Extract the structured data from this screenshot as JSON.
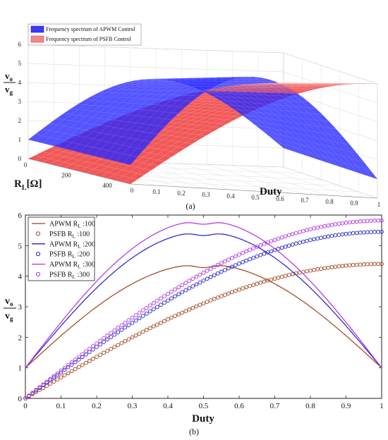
{
  "chart_data": [
    {
      "type": "surface3d",
      "panel_caption": "(a)",
      "legend": [
        {
          "name": "Frequency spectrum of APWM Control",
          "color": "#1f1fff"
        },
        {
          "name": "Frequency spectrum of PSFB Control",
          "color": "#f06a6a"
        }
      ],
      "xlabel": "Duty",
      "ylabel_main": "R",
      "ylabel_sub": "L",
      "ylabel_unit": "[Ω]",
      "zlabel_num": "v",
      "zlabel_num_sub": "o",
      "zlabel_den": "v",
      "zlabel_den_sub": "g",
      "x_ticks": [
        "0",
        "0.1",
        "0.2",
        "0.3",
        "0.4",
        "0.5",
        "0.6",
        "0.7",
        "0.8",
        "0.9",
        "1"
      ],
      "y_ticks": [
        "0",
        "200",
        "400"
      ],
      "z_ticks": [
        "0",
        "1",
        "2",
        "3",
        "4",
        "5",
        "6"
      ],
      "xlim": [
        0,
        1
      ],
      "ylim": [
        0,
        500
      ],
      "zlim": [
        0,
        6
      ],
      "grid": true,
      "legend_position": "top-left"
    },
    {
      "type": "line",
      "panel_caption": "(b)",
      "xlabel": "Duty",
      "ylabel_num": "v",
      "ylabel_num_sub": "o",
      "ylabel_den": "v",
      "ylabel_den_sub": "g",
      "xlim": [
        0,
        1
      ],
      "ylim": [
        0,
        6
      ],
      "x_ticks": [
        "0",
        "0.1",
        "0.2",
        "0.3",
        "0.4",
        "0.5",
        "0.6",
        "0.7",
        "0.8",
        "0.9",
        "1"
      ],
      "y_ticks": [
        "0",
        "1",
        "2",
        "3",
        "4",
        "5",
        "6"
      ],
      "grid": false,
      "legend_position": "top-left",
      "series": [
        {
          "name": "APWM R",
          "sub": "L",
          "suffix": " :100",
          "style": "line",
          "color": "#a0401a",
          "peak": 4.4,
          "R": 100
        },
        {
          "name": "PSFB R",
          "sub": "L",
          "suffix": " :100",
          "style": "circle",
          "color": "#a0401a",
          "peak": 4.4,
          "R": 100
        },
        {
          "name": "APWM R",
          "sub": "L",
          "suffix": " :200",
          "style": "line",
          "color": "#2020c8",
          "peak": 5.45,
          "R": 200
        },
        {
          "name": "PSFB R",
          "sub": "L",
          "suffix": " :200",
          "style": "circle",
          "color": "#2020c8",
          "peak": 5.45,
          "R": 200
        },
        {
          "name": "APWM R",
          "sub": "L",
          "suffix": " :300",
          "style": "line",
          "color": "#b030e0",
          "peak": 5.82,
          "R": 300
        },
        {
          "name": "PSFB R",
          "sub": "L",
          "suffix": " :300",
          "style": "circle",
          "color": "#b030e0",
          "peak": 5.82,
          "R": 300
        }
      ]
    }
  ]
}
